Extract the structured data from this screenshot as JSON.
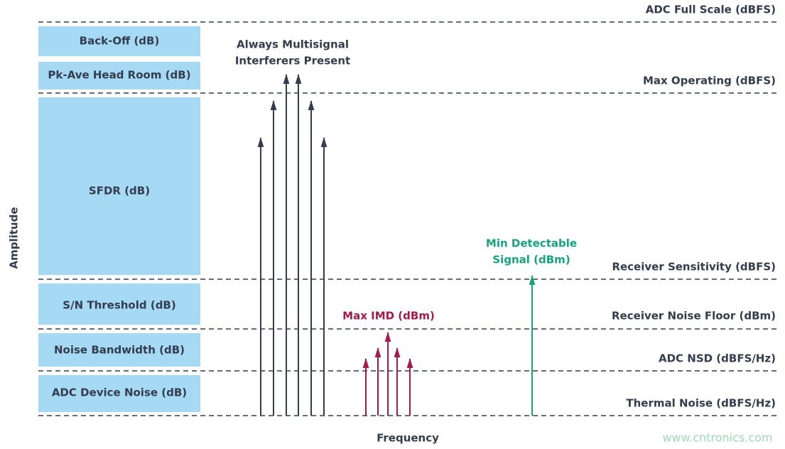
{
  "boxes": [
    "Back-Off (dB)",
    "Pk-Ave Head Room (dB)",
    "SFDR (dB)",
    "S/N Threshold (dB)",
    "Noise Bandwidth (dB)",
    "ADC Device Noise (dB)"
  ],
  "levels": [
    "ADC Full Scale (dBFS)",
    "Max Operating (dBFS)",
    "Receiver Sensitivity (dBFS)",
    "Receiver Noise Floor (dBm)",
    "ADC NSD (dBFS/Hz)",
    "Thermal Noise (dBFS/Hz)"
  ],
  "annotations": {
    "interferers": [
      "Always Multisignal",
      "Interferers Present"
    ],
    "imd": "Max IMD (dBm)",
    "min_signal": [
      "Min Detectable",
      "Signal (dBm)"
    ]
  },
  "axes": {
    "y_label": "Amplitude",
    "x_label": "Frequency"
  },
  "watermark": "www.cntronics.com"
}
